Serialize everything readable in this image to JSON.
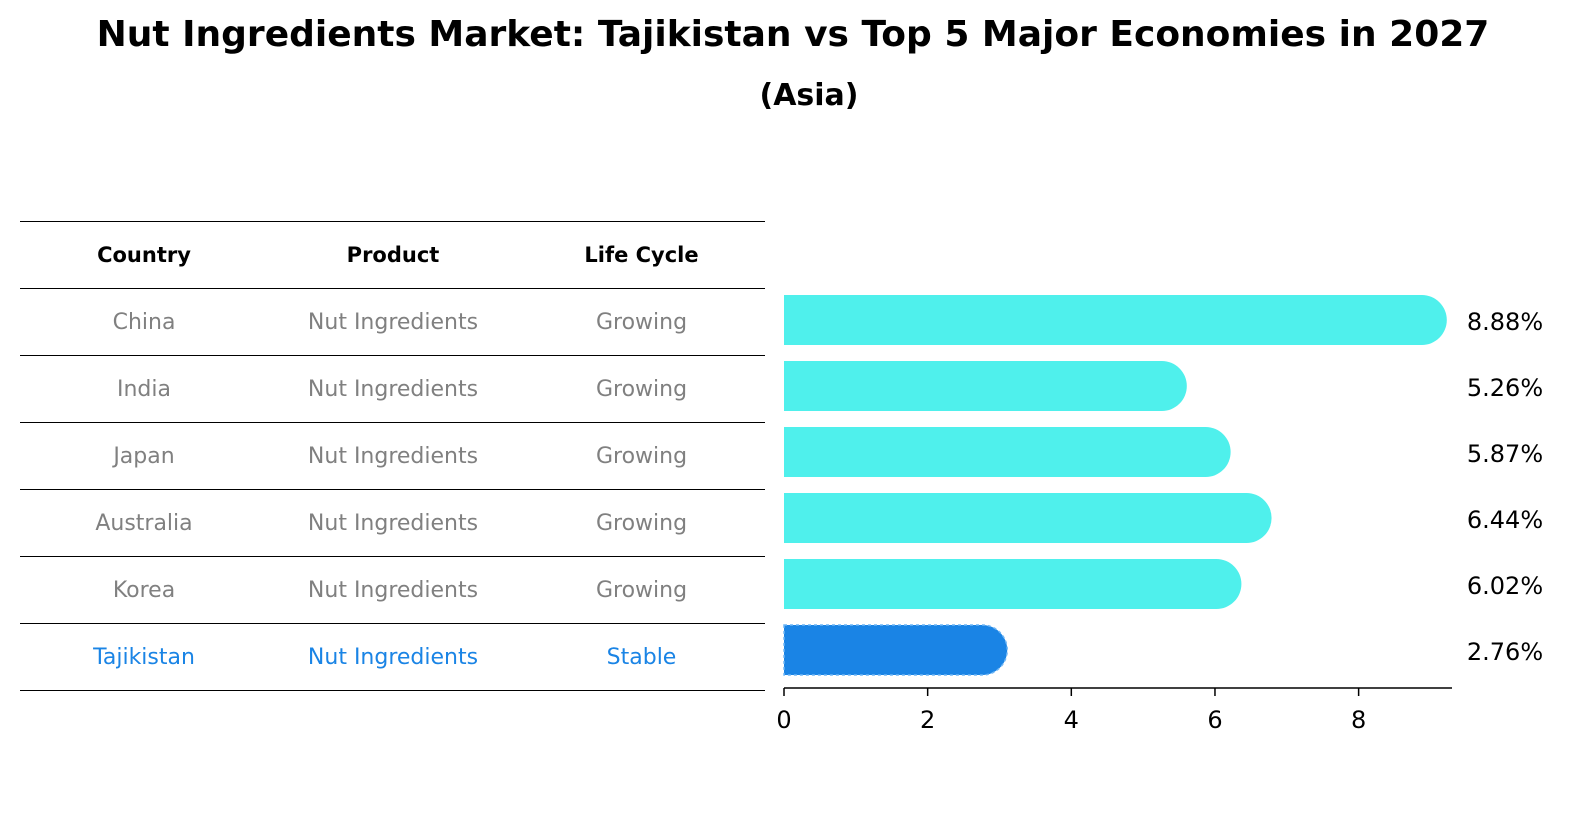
{
  "title": "Nut Ingredients Market: Tajikistan vs Top 5 Major Economies in 2027",
  "subtitle": "(Asia)",
  "table": {
    "headers": [
      "Country",
      "Product",
      "Life Cycle"
    ],
    "rows": [
      [
        "China",
        "Nut Ingredients",
        "Growing"
      ],
      [
        "India",
        "Nut Ingredients",
        "Growing"
      ],
      [
        "Japan",
        "Nut Ingredients",
        "Growing"
      ],
      [
        "Australia",
        "Nut Ingredients",
        "Growing"
      ],
      [
        "Korea",
        "Nut Ingredients",
        "Growing"
      ],
      [
        "Tajikistan",
        "Nut Ingredients",
        "Stable"
      ]
    ],
    "highlight_row": 5,
    "highlight_color": "#1a84e5",
    "text_color": "#808080"
  },
  "chart_data": {
    "type": "bar",
    "orientation": "horizontal",
    "categories": [
      "China",
      "India",
      "Japan",
      "Australia",
      "Korea",
      "Tajikistan"
    ],
    "values": [
      8.88,
      5.26,
      5.87,
      6.44,
      6.02,
      2.76
    ],
    "labels": [
      "8.88%",
      "5.26%",
      "5.87%",
      "6.44%",
      "6.02%",
      "2.76%"
    ],
    "xlim": [
      0,
      9.3
    ],
    "xticks": [
      0,
      2,
      4,
      6,
      8
    ],
    "bar_color": "#4ff0ec",
    "highlight_color": "#1a84e5",
    "highlight_index": 5,
    "grid": false
  }
}
